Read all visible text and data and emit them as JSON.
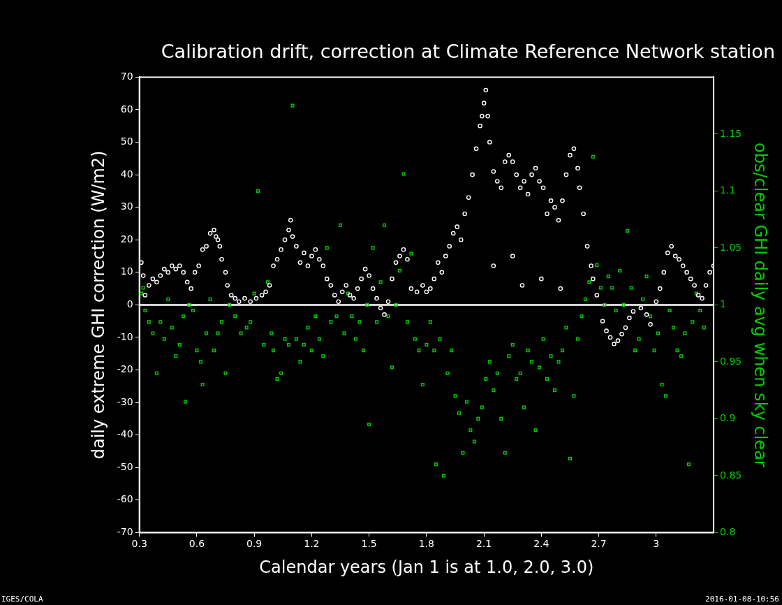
{
  "chart_data": {
    "type": "scatter",
    "title": "Calibration drift, correction at Climate Reference Network station",
    "xlabel": "Calendar years (Jan 1 is at 1.0, 2.0, 3.0)",
    "ylabel": "daily extreme GHI correction (W/m2)",
    "y2label": "obs/clear GHI daily avg when sky clear",
    "xlim": [
      0.3,
      3.3
    ],
    "xticks": [
      0.3,
      0.6,
      0.9,
      1.2,
      1.5,
      1.8,
      2.1,
      2.4,
      2.7,
      3
    ],
    "ylim": [
      -70,
      70
    ],
    "yticks": [
      -70,
      -60,
      -50,
      -40,
      -30,
      -20,
      -10,
      0,
      10,
      20,
      30,
      40,
      50,
      60,
      70
    ],
    "y2lim": [
      0.8,
      1.2
    ],
    "y2ticks": [
      0.8,
      0.85,
      0.9,
      0.95,
      1,
      1.05,
      1.1,
      1.15
    ],
    "grid": false,
    "legend": false,
    "ref_lines": [
      {
        "axis": "y",
        "value": 0,
        "color": "#ffffff",
        "line_style": "solid"
      }
    ],
    "annotations": [
      "IGES/COLA",
      "2016-01-08-10:56"
    ],
    "series": [
      {
        "color": "#ffffff",
        "marker": "circle",
        "x": [
          0.31,
          0.32,
          0.33,
          0.35,
          0.37,
          0.39,
          0.41,
          0.43,
          0.45,
          0.47,
          0.49,
          0.51,
          0.53,
          0.55,
          0.57,
          0.59,
          0.61,
          0.63,
          0.65,
          0.67,
          0.69,
          0.7,
          0.71,
          0.72,
          0.73,
          0.75,
          0.76,
          0.78,
          0.8,
          0.82,
          0.85,
          0.88,
          0.91,
          0.94,
          0.96,
          0.98,
          1,
          1.02,
          1.04,
          1.06,
          1.08,
          1.09,
          1.1,
          1.12,
          1.14,
          1.16,
          1.18,
          1.2,
          1.22,
          1.24,
          1.26,
          1.28,
          1.3,
          1.32,
          1.34,
          1.36,
          1.38,
          1.4,
          1.42,
          1.44,
          1.46,
          1.48,
          1.5,
          1.52,
          1.54,
          1.56,
          1.58,
          1.6,
          1.62,
          1.64,
          1.66,
          1.68,
          1.7,
          1.72,
          1.75,
          1.78,
          1.8,
          1.82,
          1.84,
          1.86,
          1.88,
          1.9,
          1.92,
          1.94,
          1.96,
          1.98,
          2,
          2.02,
          2.04,
          2.06,
          2.08,
          2.09,
          2.1,
          2.11,
          2.12,
          2.13,
          2.15,
          2.15,
          2.17,
          2.19,
          2.21,
          2.23,
          2.25,
          2.25,
          2.27,
          2.29,
          2.3,
          2.31,
          2.33,
          2.35,
          2.37,
          2.39,
          2.4,
          2.41,
          2.43,
          2.45,
          2.47,
          2.49,
          2.5,
          2.51,
          2.53,
          2.55,
          2.57,
          2.59,
          2.6,
          2.62,
          2.64,
          2.66,
          2.67,
          2.69,
          2.72,
          2.74,
          2.76,
          2.78,
          2.8,
          2.82,
          2.84,
          2.86,
          2.88,
          2.92,
          2.95,
          2.97,
          3,
          3.02,
          3.04,
          3.06,
          3.08,
          3.1,
          3.12,
          3.14,
          3.16,
          3.18,
          3.2,
          3.22,
          3.24,
          3.26,
          3.28,
          3.3
        ],
        "values": [
          13,
          9,
          3,
          6,
          8,
          7,
          9,
          11,
          10,
          12,
          11,
          12,
          10,
          7,
          5,
          10,
          12,
          17,
          18,
          22,
          23,
          21,
          20,
          18,
          14,
          10,
          6,
          3,
          2,
          1,
          2,
          1,
          2,
          3,
          4,
          6,
          12,
          14,
          17,
          20,
          23,
          26,
          21,
          18,
          13,
          16,
          12,
          15,
          17,
          14,
          12,
          8,
          6,
          3,
          1,
          4,
          6,
          3,
          2,
          5,
          8,
          11,
          9,
          5,
          2,
          -1,
          -3,
          1,
          8,
          13,
          15,
          17,
          14,
          5,
          4,
          6,
          4,
          5,
          8,
          13,
          10,
          15,
          18,
          22,
          24,
          20,
          28,
          33,
          40,
          48,
          55,
          58,
          62,
          66,
          58,
          50,
          41,
          12,
          38,
          36,
          44,
          46,
          44,
          15,
          40,
          36,
          6,
          38,
          34,
          40,
          42,
          38,
          8,
          36,
          28,
          32,
          30,
          26,
          5,
          32,
          40,
          46,
          48,
          42,
          36,
          28,
          18,
          12,
          8,
          3,
          -5,
          -8,
          -10,
          -12,
          -11,
          -9,
          -7,
          -4,
          -2,
          -1,
          -3,
          -6,
          1,
          5,
          10,
          16,
          18,
          15,
          14,
          12,
          10,
          8,
          6,
          3,
          2,
          6,
          10,
          12
        ]
      },
      {
        "color": "#00cc00",
        "marker": "square",
        "axis": "y2",
        "x": [
          0.31,
          0.32,
          0.33,
          0.35,
          0.37,
          0.39,
          0.41,
          0.43,
          0.45,
          0.47,
          0.49,
          0.51,
          0.53,
          0.54,
          0.56,
          0.58,
          0.6,
          0.62,
          0.63,
          0.65,
          0.67,
          0.69,
          0.71,
          0.73,
          0.75,
          0.77,
          0.8,
          0.83,
          0.86,
          0.88,
          0.9,
          0.92,
          0.95,
          0.97,
          0.99,
          1,
          1.02,
          1.04,
          1.06,
          1.08,
          1.1,
          1.12,
          1.14,
          1.16,
          1.18,
          1.2,
          1.22,
          1.24,
          1.26,
          1.28,
          1.3,
          1.33,
          1.35,
          1.37,
          1.39,
          1.41,
          1.43,
          1.45,
          1.47,
          1.49,
          1.5,
          1.52,
          1.54,
          1.56,
          1.58,
          1.6,
          1.62,
          1.64,
          1.66,
          1.68,
          1.7,
          1.72,
          1.74,
          1.76,
          1.78,
          1.8,
          1.82,
          1.84,
          1.85,
          1.87,
          1.89,
          1.91,
          1.93,
          1.95,
          1.97,
          1.99,
          2.01,
          2.03,
          2.05,
          2.07,
          2.09,
          2.11,
          2.13,
          2.15,
          2.17,
          2.19,
          2.21,
          2.23,
          2.25,
          2.27,
          2.29,
          2.31,
          2.33,
          2.35,
          2.37,
          2.39,
          2.41,
          2.43,
          2.45,
          2.47,
          2.49,
          2.51,
          2.53,
          2.55,
          2.57,
          2.59,
          2.61,
          2.63,
          2.65,
          2.67,
          2.69,
          2.71,
          2.73,
          2.75,
          2.77,
          2.79,
          2.81,
          2.83,
          2.85,
          2.87,
          2.89,
          2.91,
          2.93,
          2.95,
          2.97,
          2.99,
          3.01,
          3.03,
          3.05,
          3.07,
          3.09,
          3.11,
          3.13,
          3.15,
          3.17,
          3.19,
          3.21,
          3.23,
          3.25
        ],
        "values": [
          1.01,
          1.015,
          0.995,
          0.985,
          0.975,
          0.94,
          0.985,
          0.97,
          1.005,
          0.98,
          0.955,
          0.965,
          0.99,
          0.915,
          1,
          0.995,
          0.96,
          0.95,
          0.93,
          0.975,
          1.005,
          0.96,
          0.975,
          0.985,
          0.94,
          1,
          0.99,
          0.975,
          0.98,
          0.985,
          1.01,
          1.1,
          0.965,
          1.02,
          0.975,
          0.96,
          0.935,
          0.94,
          0.97,
          0.965,
          1.175,
          0.97,
          0.95,
          0.965,
          0.98,
          0.96,
          0.99,
          0.97,
          0.955,
          1.05,
          0.985,
          0.99,
          1.07,
          0.975,
          1.01,
          0.99,
          0.97,
          0.985,
          0.96,
          1,
          0.895,
          1.05,
          0.985,
          1.02,
          1.07,
          0.99,
          0.945,
          1,
          1.03,
          1.115,
          0.985,
          1.045,
          0.97,
          0.96,
          0.93,
          0.965,
          0.985,
          0.96,
          0.86,
          0.97,
          0.85,
          0.94,
          0.96,
          0.92,
          0.905,
          0.87,
          0.915,
          0.89,
          0.88,
          0.9,
          0.91,
          0.935,
          0.95,
          0.925,
          0.94,
          0.9,
          0.87,
          0.955,
          0.965,
          0.935,
          0.94,
          0.91,
          0.96,
          0.95,
          0.89,
          0.945,
          0.97,
          0.935,
          0.955,
          0.925,
          0.95,
          0.96,
          0.98,
          0.865,
          0.92,
          0.97,
          0.99,
          1.005,
          1.02,
          1.13,
          1.035,
          1.015,
          1,
          1.025,
          1.015,
          0.995,
          1.03,
          1,
          1.065,
          1.015,
          0.96,
          0.97,
          1.005,
          1.025,
          0.99,
          0.96,
          0.975,
          0.93,
          0.92,
          0.995,
          0.98,
          0.96,
          0.955,
          0.975,
          0.86,
          0.985,
          1.01,
          0.995,
          0.98
        ]
      }
    ]
  }
}
